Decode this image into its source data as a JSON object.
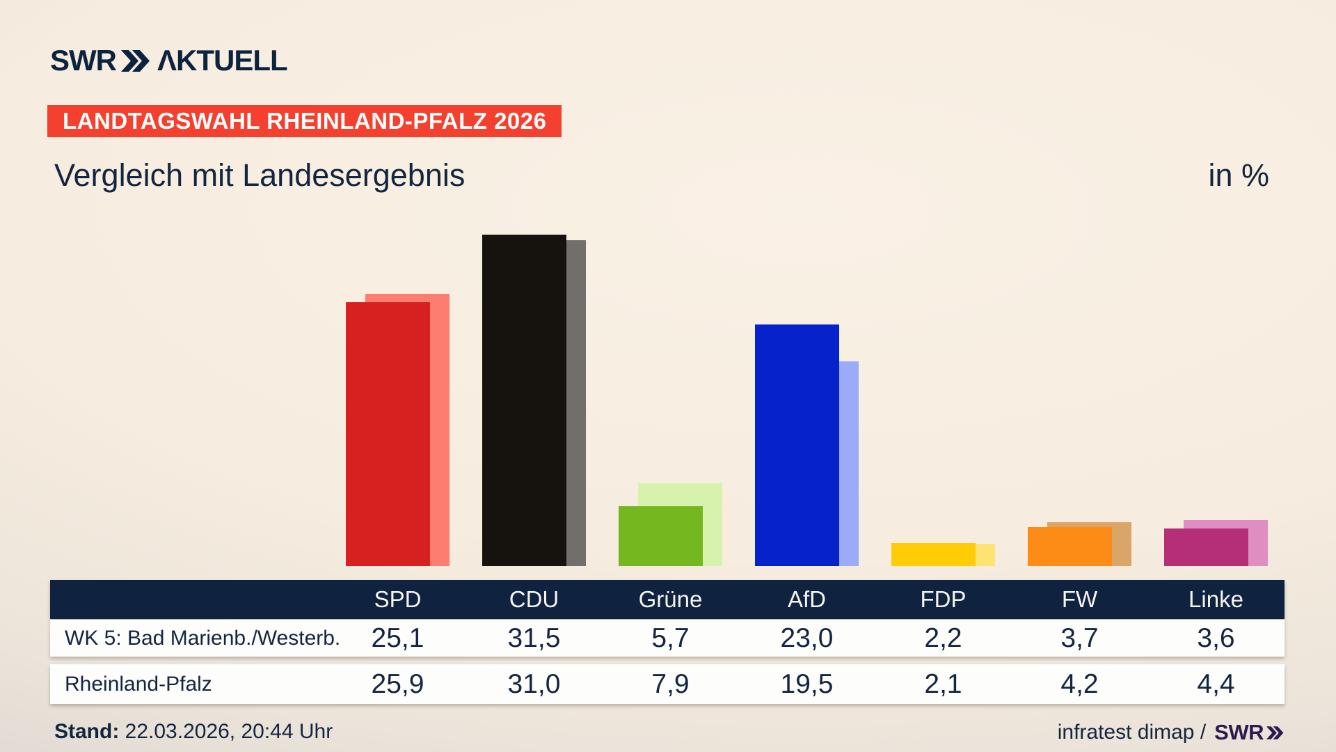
{
  "brand": {
    "logo_text": "SWR",
    "logo_suffix": "ΛKTUELL",
    "navy": "#0c2340"
  },
  "header": {
    "badge": "LANDTAGSWAHL RHEINLAND-PFALZ 2026",
    "badge_bg": "#f4402e",
    "title": "Vergleich mit Landesergebnis",
    "unit_label": "in %"
  },
  "chart_data": {
    "type": "bar",
    "title": "Vergleich mit Landesergebnis",
    "unit": "%",
    "grid": false,
    "legend_position": "table-below",
    "ylim": [
      0,
      33
    ],
    "categories": [
      "SPD",
      "CDU",
      "Grüne",
      "AfD",
      "FDP",
      "FW",
      "Linke"
    ],
    "series": [
      {
        "name": "WK 5: Bad Marienb./Westerb.",
        "values": [
          25.1,
          31.5,
          5.7,
          23.0,
          2.2,
          3.7,
          3.6
        ]
      },
      {
        "name": "Rheinland-Pfalz",
        "values": [
          25.9,
          31.0,
          7.9,
          19.5,
          2.1,
          4.2,
          4.4
        ]
      }
    ],
    "colors_main": [
      "#d62120",
      "#16130f",
      "#75b71f",
      "#0522cb",
      "#ffcc07",
      "#fd8c16",
      "#b52e78"
    ],
    "colors_light": [
      "#fe7d71",
      "#716e6c",
      "#d6f2ad",
      "#9aabfa",
      "#ffe372",
      "#daa668",
      "#df8ec2"
    ]
  },
  "table": {
    "header_bg": "#0f2240",
    "rows": [
      {
        "label": "WK 5: Bad Marienb./Westerb.",
        "values": [
          "25,1",
          "31,5",
          "5,7",
          "23,0",
          "2,2",
          "3,7",
          "3,6"
        ]
      },
      {
        "label": "Rheinland-Pfalz",
        "values": [
          "25,9",
          "31,0",
          "7,9",
          "19,5",
          "2,1",
          "4,2",
          "4,4"
        ]
      }
    ]
  },
  "footer": {
    "stand_label": "Stand:",
    "stand_value": " 22.03.2026, 20:44 Uhr",
    "attribution": "infratest dimap / ",
    "attribution_brand": "SWR",
    "attribution_brand_color": "#2c1b4d"
  }
}
